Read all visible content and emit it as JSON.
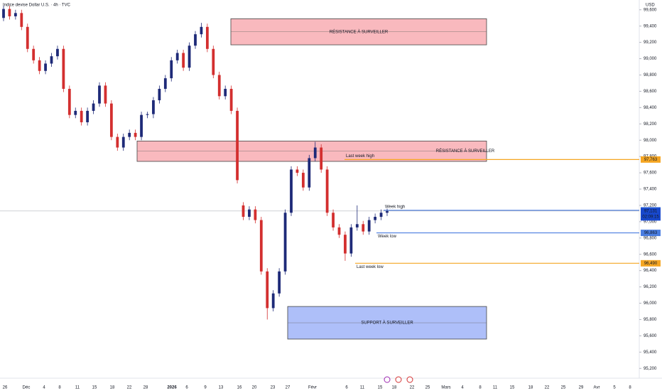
{
  "chart_data": {
    "type": "candlestick",
    "title": "Indice devise Dollar U.S. · 4h · TVC",
    "currency": "USD",
    "up_color": "#1e2a78",
    "down_color": "#d32f2f",
    "ylim": [
      95080,
      99720
    ],
    "yticks": [
      {
        "value": 99600,
        "label": "99,600"
      },
      {
        "value": 99400,
        "label": "99,400"
      },
      {
        "value": 99200,
        "label": "99,200"
      },
      {
        "value": 99000,
        "label": "99,000"
      },
      {
        "value": 98800,
        "label": "98,800"
      },
      {
        "value": 98600,
        "label": "98,600"
      },
      {
        "value": 98400,
        "label": "98,400"
      },
      {
        "value": 98200,
        "label": "98,200"
      },
      {
        "value": 98000,
        "label": "98,000"
      },
      {
        "value": 97800,
        "label": "97,800"
      },
      {
        "value": 97600,
        "label": "97,600"
      },
      {
        "value": 97400,
        "label": "97,400"
      },
      {
        "value": 97200,
        "label": "97,200"
      },
      {
        "value": 97000,
        "label": "97,000"
      },
      {
        "value": 96800,
        "label": "96,800"
      },
      {
        "value": 96600,
        "label": "96,600"
      },
      {
        "value": 96400,
        "label": "96,400"
      },
      {
        "value": 96200,
        "label": "96,200"
      },
      {
        "value": 96000,
        "label": "96,000"
      },
      {
        "value": 95800,
        "label": "95,800"
      },
      {
        "value": 95600,
        "label": "95,600"
      },
      {
        "value": 95400,
        "label": "95,400"
      },
      {
        "value": 95200,
        "label": "95,200"
      }
    ],
    "x_labels": [
      "26",
      "Déc",
      "4",
      "8",
      "11",
      "15",
      "18",
      "22",
      "28",
      "2026",
      "6",
      "9",
      "13",
      "16",
      "20",
      "23",
      "27",
      "Févr",
      "6",
      "11",
      "15",
      "18",
      "22",
      "25",
      "Mars",
      "4",
      "8",
      "11",
      "15",
      "18",
      "22",
      "25",
      "29",
      "Avr",
      "5",
      "8"
    ],
    "ohlc": [
      [
        99500,
        99650,
        99460,
        99610
      ],
      [
        99610,
        99650,
        99480,
        99520
      ],
      [
        99520,
        99600,
        99480,
        99560
      ],
      [
        99560,
        99600,
        99350,
        99390
      ],
      [
        99390,
        99430,
        99080,
        99120
      ],
      [
        99120,
        99160,
        98940,
        98980
      ],
      [
        98980,
        99020,
        98810,
        98850
      ],
      [
        98850,
        98980,
        98810,
        98940
      ],
      [
        98940,
        99070,
        98900,
        99030
      ],
      [
        99030,
        99160,
        98990,
        99120
      ],
      [
        99120,
        99160,
        98590,
        98630
      ],
      [
        98630,
        98670,
        98270,
        98310
      ],
      [
        98310,
        98400,
        98270,
        98360
      ],
      [
        98360,
        98400,
        98180,
        98220
      ],
      [
        98220,
        98400,
        98180,
        98360
      ],
      [
        98360,
        98490,
        98320,
        98450
      ],
      [
        98450,
        98710,
        98410,
        98670
      ],
      [
        98670,
        98710,
        98410,
        98450
      ],
      [
        98450,
        98490,
        98000,
        98040
      ],
      [
        98040,
        98080,
        97870,
        97910
      ],
      [
        97910,
        98080,
        97870,
        98040
      ],
      [
        98040,
        98130,
        98000,
        98090
      ],
      [
        98090,
        98130,
        98000,
        98040
      ],
      [
        98040,
        98350,
        98000,
        98310
      ],
      [
        98310,
        98350,
        98270,
        98320
      ],
      [
        98320,
        98530,
        98270,
        98490
      ],
      [
        98490,
        98670,
        98450,
        98630
      ],
      [
        98630,
        98800,
        98590,
        98760
      ],
      [
        98760,
        99020,
        98720,
        98980
      ],
      [
        98980,
        99110,
        98940,
        99070
      ],
      [
        99070,
        99110,
        98850,
        98890
      ],
      [
        98890,
        99200,
        98850,
        99160
      ],
      [
        99160,
        99340,
        99120,
        99300
      ],
      [
        99300,
        99440,
        99260,
        99390
      ],
      [
        99390,
        99430,
        99080,
        99120
      ],
      [
        99120,
        99160,
        98760,
        98800
      ],
      [
        98800,
        98840,
        98500,
        98540
      ],
      [
        98540,
        98670,
        98500,
        98630
      ],
      [
        98630,
        98670,
        98320,
        98360
      ],
      [
        98360,
        98400,
        97470,
        97510
      ],
      [
        97200,
        97240,
        97020,
        97060
      ],
      [
        97060,
        97190,
        97020,
        97150
      ],
      [
        97150,
        97190,
        96980,
        97020
      ],
      [
        97020,
        97060,
        96350,
        96390
      ],
      [
        96390,
        96430,
        95800,
        95940
      ],
      [
        95940,
        96160,
        95900,
        96120
      ],
      [
        96120,
        96430,
        96080,
        96390
      ],
      [
        96390,
        97150,
        96350,
        97110
      ],
      [
        97110,
        97680,
        97070,
        97640
      ],
      [
        97640,
        97680,
        97560,
        97600
      ],
      [
        97600,
        97640,
        97380,
        97420
      ],
      [
        97420,
        97820,
        97380,
        97780
      ],
      [
        97780,
        97980,
        97740,
        97910
      ],
      [
        97910,
        97950,
        97600,
        97640
      ],
      [
        97640,
        97680,
        97070,
        97110
      ],
      [
        97110,
        97150,
        96890,
        96930
      ],
      [
        96930,
        96970,
        96800,
        96840
      ],
      [
        96840,
        96880,
        96520,
        96610
      ],
      [
        96610,
        96970,
        96570,
        96930
      ],
      [
        96930,
        97200,
        96890,
        96970
      ],
      [
        96970,
        97010,
        96840,
        96880
      ],
      [
        96880,
        97060,
        96840,
        97020
      ],
      [
        97020,
        97100,
        96980,
        97060
      ],
      [
        97060,
        97150,
        97020,
        97110
      ],
      [
        97110,
        97160,
        97070,
        97131
      ]
    ],
    "zones": [
      {
        "label": "RÉSISTANCE À SURVEILLER",
        "top": 99490,
        "bottom": 99170,
        "color": "#f7a1a8"
      },
      {
        "label": "RÉSISTANCE À SURVEILLER",
        "top": 97990,
        "bottom": 97740,
        "color": "#f7a1a8"
      },
      {
        "label": "SUPPORT À SURVEILLER",
        "top": 95960,
        "bottom": 95560,
        "color": "#93aaf7"
      }
    ],
    "levels": [
      {
        "name": "Last week high",
        "value": 97763,
        "label": "97,763",
        "color": "#f5a623"
      },
      {
        "name": "Week high",
        "value": 97140,
        "label": "97,140",
        "color": "#4a7de0"
      },
      {
        "name": "Week low",
        "value": 96863,
        "label": "96,863",
        "color": "#4a7de0"
      },
      {
        "name": "Last week low",
        "value": 96490,
        "label": "96,490",
        "color": "#f5a623"
      }
    ],
    "last_price": {
      "value": 97131,
      "label": "97,131",
      "countdown": "02:09:15",
      "color": "#1848cc"
    }
  }
}
